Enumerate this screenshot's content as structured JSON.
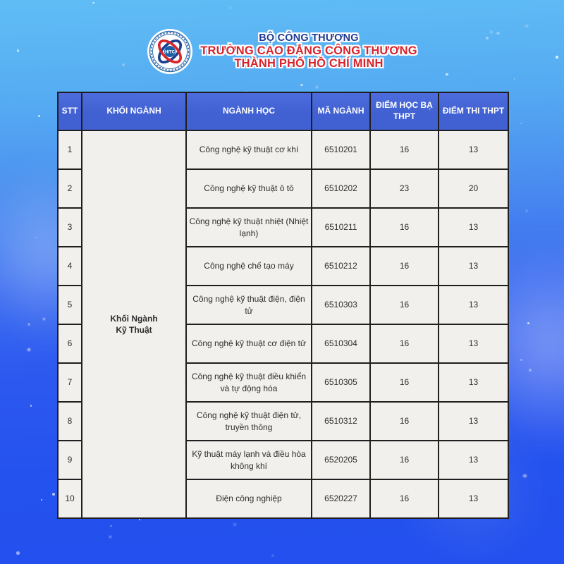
{
  "brand": {
    "ministry": "BỘ CÔNG THƯƠNG",
    "school_line1": "TRƯỜNG CAO ĐẲNG CÔNG THƯƠNG",
    "school_line2": "THÀNH PHỐ HỒ CHÍ MINH",
    "logo_text": "HITC"
  },
  "table": {
    "columns": [
      "STT",
      "KHỐI NGÀNH",
      "NGÀNH HỌC",
      "MÃ NGÀNH",
      "ĐIỂM HỌC BẠ THPT",
      "ĐIỂM THI THPT"
    ],
    "group": {
      "line1": "Khối Ngành",
      "line2": "Kỹ Thuật"
    },
    "rows": [
      {
        "stt": "1",
        "major": "Công nghệ kỹ thuật cơ khí",
        "code": "6510201",
        "hocba": "16",
        "thi": "13"
      },
      {
        "stt": "2",
        "major": "Công nghệ kỹ thuật ô tô",
        "code": "6510202",
        "hocba": "23",
        "thi": "20"
      },
      {
        "stt": "3",
        "major": "Công nghệ kỹ thuật nhiệt (Nhiệt lạnh)",
        "code": "6510211",
        "hocba": "16",
        "thi": "13"
      },
      {
        "stt": "4",
        "major": "Công nghệ chế tạo máy",
        "code": "6510212",
        "hocba": "16",
        "thi": "13"
      },
      {
        "stt": "5",
        "major": "Công nghệ kỹ thuật điện, điện tử",
        "code": "6510303",
        "hocba": "16",
        "thi": "13"
      },
      {
        "stt": "6",
        "major": "Công nghệ kỹ thuật cơ điện tử",
        "code": "6510304",
        "hocba": "16",
        "thi": "13"
      },
      {
        "stt": "7",
        "major": "Công nghệ kỹ thuật điều khiển và tự động hóa",
        "code": "6510305",
        "hocba": "16",
        "thi": "13"
      },
      {
        "stt": "8",
        "major": "Công nghệ kỹ thuật điện tử, truyền thông",
        "code": "6510312",
        "hocba": "16",
        "thi": "13"
      },
      {
        "stt": "9",
        "major": "Kỹ thuật máy lạnh và điều hòa không khí",
        "code": "6520205",
        "hocba": "16",
        "thi": "13"
      },
      {
        "stt": "10",
        "major": "Điện công nghiệp",
        "code": "6520227",
        "hocba": "16",
        "thi": "13"
      }
    ]
  },
  "colors": {
    "header_blue": "#4161d2",
    "cell_bg": "#f2f0ed",
    "grid_line": "#1f1f1f",
    "title_navy": "#1d3a94",
    "title_red": "#d9232b",
    "bg_top": "#60bdf4",
    "bg_bottom": "#2350ee",
    "logo_blue": "#1b3f8f",
    "logo_red": "#d6252b"
  }
}
